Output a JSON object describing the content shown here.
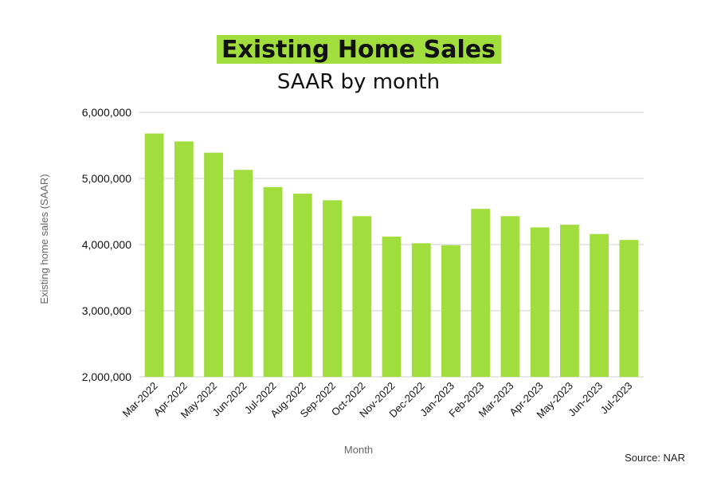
{
  "chart_data": {
    "type": "bar",
    "title": "Existing Home Sales",
    "subtitle": "SAAR by month",
    "xlabel": "Month",
    "ylabel": "Existing home sales (SAAR)",
    "ylim": [
      2000000,
      6000000
    ],
    "yticks": [
      2000000,
      3000000,
      4000000,
      5000000,
      6000000
    ],
    "ytick_labels": [
      "2,000,000",
      "3,000,000",
      "4,000,000",
      "5,000,000",
      "6,000,000"
    ],
    "grid": true,
    "categories": [
      "Mar-2022",
      "Apr-2022",
      "May-2022",
      "Jun-2022",
      "Jul-2022",
      "Aug-2022",
      "Sep-2022",
      "Oct-2022",
      "Nov-2022",
      "Dec-2022",
      "Jan-2023",
      "Feb-2023",
      "Mar-2023",
      "Apr-2023",
      "May-2023",
      "Jun-2023",
      "Jul-2023"
    ],
    "values": [
      5680000,
      5560000,
      5390000,
      5130000,
      4870000,
      4770000,
      4670000,
      4430000,
      4120000,
      4020000,
      3990000,
      4540000,
      4430000,
      4260000,
      4300000,
      4160000,
      4070000
    ],
    "bar_color": "#a1dd3c",
    "title_highlight_color": "#a1dd3c",
    "source": "Source: NAR"
  }
}
